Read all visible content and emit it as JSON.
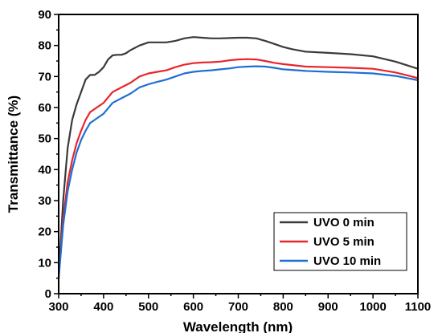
{
  "chart_data": {
    "type": "line",
    "title": "",
    "xlabel": "Wavelength (nm)",
    "ylabel": "Transmittance (%)",
    "xlim": [
      300,
      1100
    ],
    "ylim": [
      0,
      90
    ],
    "xticks": [
      300,
      400,
      500,
      600,
      700,
      800,
      900,
      1000,
      1100
    ],
    "yticks": [
      0,
      10,
      20,
      30,
      40,
      50,
      60,
      70,
      80,
      90
    ],
    "grid": false,
    "legend_position": "bottom-right",
    "series": [
      {
        "name": "UVO 0 min",
        "color": "#3a3a3a",
        "x": [
          300,
          310,
          320,
          330,
          340,
          350,
          360,
          370,
          380,
          390,
          400,
          410,
          420,
          430,
          440,
          450,
          460,
          480,
          500,
          520,
          540,
          560,
          580,
          600,
          620,
          640,
          660,
          680,
          700,
          720,
          740,
          760,
          780,
          800,
          820,
          850,
          900,
          950,
          1000,
          1050,
          1100
        ],
        "y": [
          5,
          30,
          47,
          56,
          61,
          65,
          69,
          70.5,
          70.5,
          71.5,
          73,
          75.5,
          76.8,
          77,
          77,
          77.5,
          78.5,
          80,
          81,
          81,
          81,
          81.5,
          82.3,
          82.7,
          82.5,
          82.3,
          82.3,
          82.4,
          82.5,
          82.5,
          82.3,
          81.5,
          80.5,
          79.5,
          78.8,
          78,
          77.6,
          77.2,
          76.5,
          74.8,
          72.5
        ]
      },
      {
        "name": "UVO 5 min",
        "color": "#e8252b",
        "x": [
          300,
          310,
          320,
          330,
          340,
          350,
          360,
          370,
          380,
          400,
          420,
          440,
          460,
          480,
          500,
          520,
          540,
          560,
          580,
          600,
          620,
          640,
          660,
          680,
          700,
          720,
          740,
          760,
          780,
          800,
          850,
          900,
          950,
          1000,
          1050,
          1100
        ],
        "y": [
          5,
          24,
          36,
          43,
          48.5,
          52.5,
          56,
          58.5,
          59.5,
          61.5,
          65,
          66.5,
          68,
          70,
          71,
          71.5,
          72,
          73,
          73.8,
          74.3,
          74.5,
          74.6,
          74.8,
          75.2,
          75.5,
          75.6,
          75.5,
          75,
          74.4,
          74,
          73.2,
          73,
          72.8,
          72.5,
          71.3,
          69.5
        ]
      },
      {
        "name": "UVO 10 min",
        "color": "#1f6fd1",
        "x": [
          300,
          310,
          320,
          330,
          340,
          350,
          360,
          370,
          380,
          400,
          420,
          440,
          460,
          480,
          500,
          520,
          540,
          560,
          580,
          600,
          620,
          640,
          660,
          680,
          700,
          720,
          740,
          760,
          780,
          800,
          850,
          900,
          950,
          1000,
          1050,
          1100
        ],
        "y": [
          5,
          22,
          33,
          40,
          45.5,
          49.5,
          52.5,
          55,
          56,
          58,
          61.5,
          63,
          64.5,
          66.5,
          67.5,
          68.3,
          69,
          70,
          71,
          71.5,
          71.8,
          72,
          72.3,
          72.6,
          73,
          73.2,
          73.3,
          73.2,
          72.8,
          72.3,
          71.8,
          71.5,
          71.3,
          71,
          70.2,
          68.8
        ]
      }
    ]
  }
}
